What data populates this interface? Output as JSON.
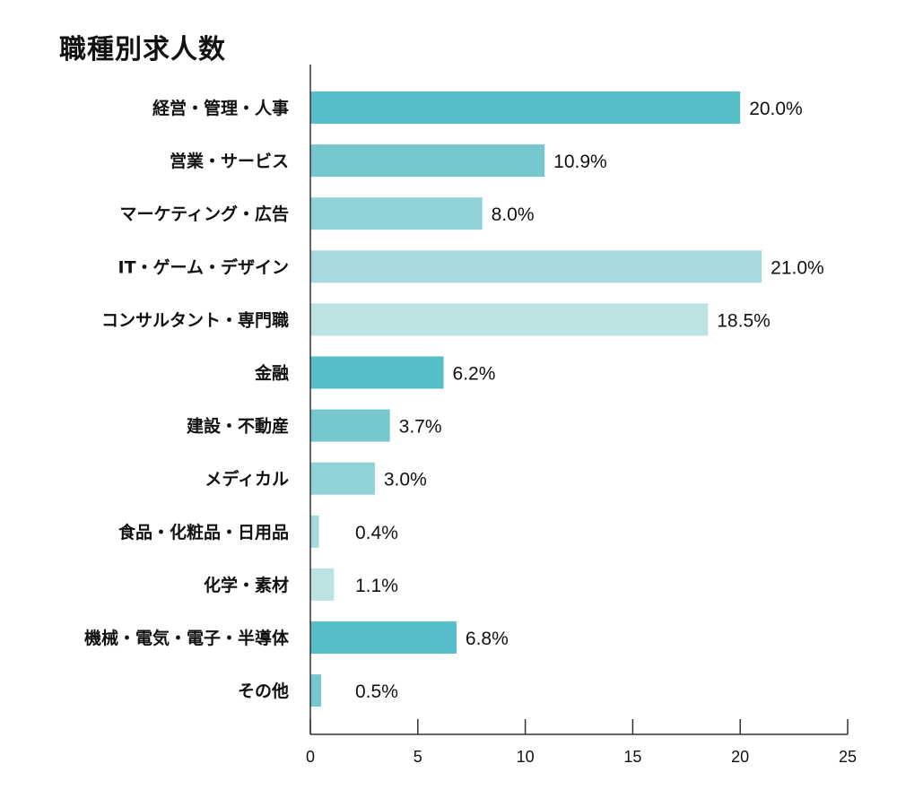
{
  "chart_data": {
    "type": "bar",
    "orientation": "horizontal",
    "title": "職種別求人数",
    "categories": [
      "経営・管理・人事",
      "営業・サービス",
      "マーケティング・広告",
      "IT・ゲーム・デザイン",
      "コンサルタント・専門職",
      "金融",
      "建設・不動産",
      "メディカル",
      "食品・化粧品・日用品",
      "化学・素材",
      "機械・電気・電子・半導体",
      "その他"
    ],
    "values": [
      20.0,
      10.9,
      8.0,
      21.0,
      18.5,
      6.2,
      3.7,
      3.0,
      0.4,
      1.1,
      6.8,
      0.5
    ],
    "value_labels": [
      "20.0%",
      "10.9%",
      "8.0%",
      "21.0%",
      "18.5%",
      "6.2%",
      "3.7%",
      "3.0%",
      "0.4%",
      "1.1%",
      "6.8%",
      "0.5%"
    ],
    "xlim": [
      0,
      25
    ],
    "xticks": [
      "0",
      "5",
      "10",
      "15",
      "20",
      "25"
    ],
    "xlabel": "",
    "ylabel": "",
    "grid": false,
    "legend": "none",
    "colors": [
      "#55bec8",
      "#74c8ce",
      "#90d2d6",
      "#a6dadc",
      "#bce3e4"
    ]
  }
}
